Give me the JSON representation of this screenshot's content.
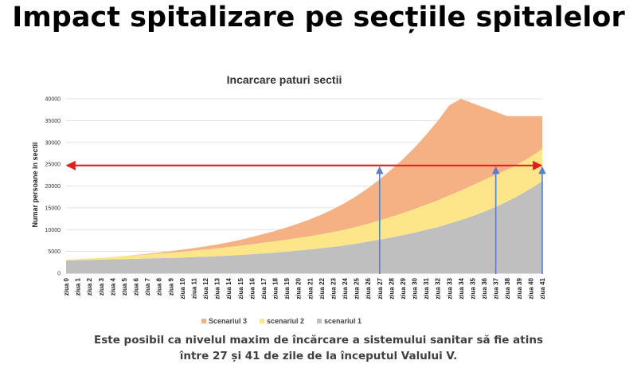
{
  "slide": {
    "title": "Impact spitalizare pe secțiile spitalelor",
    "caption_line1": "Este posibil ca nivelul maxim de încărcare a sistemului sanitar să fie atins",
    "caption_line2": "între 27 și 41 de zile de la începutul Valului V."
  },
  "chart_data": {
    "type": "area",
    "stacked": true,
    "title": "Incarcare paturi sectii",
    "xlabel": "",
    "ylabel": "Numar persoane in sectii",
    "ylim": [
      0,
      40000
    ],
    "yticks": [
      0,
      5000,
      10000,
      15000,
      20000,
      25000,
      30000,
      35000,
      40000
    ],
    "grid": true,
    "legend_position": "bottom",
    "categories": [
      "ziua 0",
      "ziua 1",
      "ziua 2",
      "ziua 3",
      "ziua 4",
      "ziua 5",
      "ziua 6",
      "ziua 7",
      "ziua 8",
      "ziua 9",
      "ziua 10",
      "ziua 11",
      "ziua 12",
      "ziua 13",
      "ziua 14",
      "ziua 15",
      "ziua 16",
      "ziua 17",
      "ziua 18",
      "ziua 19",
      "ziua 20",
      "ziua 21",
      "ziua 22",
      "ziua 23",
      "ziua 24",
      "ziua 25",
      "ziua 26",
      "ziua 27",
      "ziua 28",
      "ziua 29",
      "ziua 30",
      "ziua 31",
      "ziua 32",
      "ziua 33",
      "ziua 34",
      "ziua 35",
      "ziua 36",
      "ziua 37",
      "ziua 38",
      "ziua 39",
      "ziua 40",
      "ziua 41"
    ],
    "series": [
      {
        "name": "scenariul 1",
        "color": "#bfbfbf",
        "values": [
          2900,
          3000,
          3050,
          3100,
          3200,
          3250,
          3300,
          3400,
          3450,
          3500,
          3600,
          3700,
          3800,
          3900,
          4050,
          4200,
          4350,
          4550,
          4750,
          4950,
          5200,
          5450,
          5750,
          6050,
          6400,
          6800,
          7250,
          7700,
          8200,
          8750,
          9300,
          9950,
          10600,
          11400,
          12200,
          13100,
          14100,
          15200,
          16450,
          17850,
          19400,
          21100
        ]
      },
      {
        "name": "scenariul 2",
        "color": "#fde68a",
        "values": [
          200,
          250,
          350,
          450,
          550,
          700,
          800,
          900,
          1050,
          1200,
          1350,
          1500,
          1650,
          1800,
          1950,
          2100,
          2300,
          2450,
          2600,
          2750,
          2900,
          3050,
          3200,
          3400,
          3600,
          3850,
          4100,
          4400,
          4750,
          5050,
          5400,
          5750,
          6100,
          6450,
          6800,
          7100,
          7300,
          7400,
          7350,
          7300,
          7300,
          7400
        ]
      },
      {
        "name": "Scenariul 3",
        "color": "#f4b183",
        "values": [
          0,
          0,
          0,
          0,
          0,
          0,
          100,
          150,
          250,
          350,
          450,
          550,
          700,
          900,
          1100,
          1350,
          1650,
          2000,
          2350,
          2800,
          3300,
          3850,
          4500,
          5250,
          6100,
          7050,
          8150,
          9400,
          10800,
          12350,
          14100,
          16050,
          18200,
          20650,
          23000,
          18800,
          16600,
          14400,
          12200,
          10850,
          9300,
          7500
        ]
      }
    ],
    "annotations": {
      "threshold_line": {
        "value": 24700,
        "color": "#e02020"
      },
      "markers": [
        {
          "category": "ziua 27",
          "value": 24700,
          "color": "#5b7fc4"
        },
        {
          "category": "ziua 37",
          "value": 24700,
          "color": "#5b7fc4"
        },
        {
          "category": "ziua 41",
          "value": 24700,
          "color": "#5b7fc4"
        }
      ]
    }
  }
}
